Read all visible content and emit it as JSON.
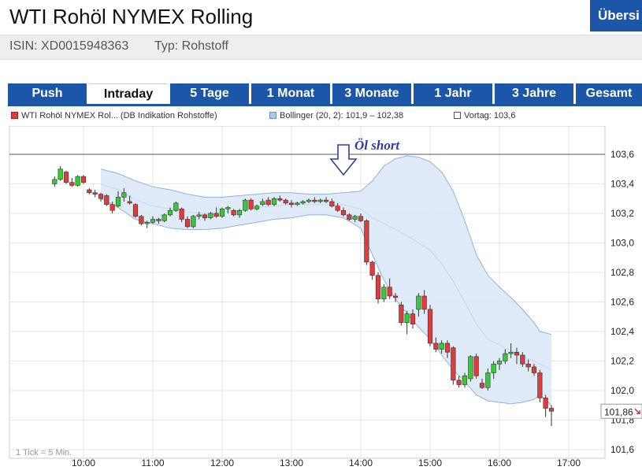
{
  "header": {
    "title": "WTI Rohöl NYMEX Rolling",
    "isin": "ISIN: XD0015948363",
    "typ": "Typ: Rohstoff",
    "overview_button": "Übersi"
  },
  "tabs": [
    {
      "label": "Push",
      "active": false
    },
    {
      "label": "Intraday",
      "active": true
    },
    {
      "label": "5 Tage",
      "active": false
    },
    {
      "label": "1 Monat",
      "active": false
    },
    {
      "label": "3 Monate",
      "active": false
    },
    {
      "label": "1 Jahr",
      "active": false
    },
    {
      "label": "3 Jahre",
      "active": false
    },
    {
      "label": "Gesamt",
      "active": false
    }
  ],
  "legend": {
    "series": "WTI Rohöl NYMEX Rol... (DB Indikation Rohstoffe)",
    "bollinger": "Bollinger (20, 2): 101,9 – 102,38",
    "vortag": "Vortag: 103,6"
  },
  "colors": {
    "accent": "#1b56a8",
    "up": "#33cc33",
    "down": "#e23b3b",
    "band_fill": "#dde9fa",
    "band_line": "#8fb0dd"
  },
  "chart_data": {
    "type": "candlestick",
    "annotation": "Öl short",
    "tick_note": "1 Tick = 5 Min.",
    "last_price_label": "101,86",
    "grid": true,
    "previous_close": 103.6,
    "xlabels": [
      "10:00",
      "11:00",
      "12:00",
      "13:00",
      "14:00",
      "15:00",
      "16:00",
      "17:00"
    ],
    "ylabels": [
      "103,6",
      "103,4",
      "103,2",
      "103,0",
      "102,8",
      "102,6",
      "102,4",
      "102,2",
      "102,0",
      "101,8",
      "101,6"
    ],
    "ylim": [
      101.58,
      103.66
    ],
    "x_start": "09:35",
    "candles": [
      {
        "t": "09:35",
        "o": 103.4,
        "h": 103.45,
        "l": 103.38,
        "c": 103.43
      },
      {
        "t": "09:40",
        "o": 103.43,
        "h": 103.52,
        "l": 103.42,
        "c": 103.5
      },
      {
        "t": "09:45",
        "o": 103.48,
        "h": 103.49,
        "l": 103.4,
        "c": 103.41
      },
      {
        "t": "09:50",
        "o": 103.41,
        "h": 103.44,
        "l": 103.38,
        "c": 103.39
      },
      {
        "t": "09:55",
        "o": 103.39,
        "h": 103.46,
        "l": 103.38,
        "c": 103.45
      },
      {
        "t": "10:00",
        "o": 103.45,
        "h": 103.46,
        "l": 103.4,
        "c": 103.41
      },
      {
        "t": "10:05",
        "o": 103.36,
        "h": 103.37,
        "l": 103.33,
        "c": 103.34
      },
      {
        "t": "10:10",
        "o": 103.34,
        "h": 103.36,
        "l": 103.31,
        "c": 103.33
      },
      {
        "t": "10:15",
        "o": 103.33,
        "h": 103.34,
        "l": 103.28,
        "c": 103.3
      },
      {
        "t": "10:20",
        "o": 103.32,
        "h": 103.33,
        "l": 103.25,
        "c": 103.26
      },
      {
        "t": "10:25",
        "o": 103.26,
        "h": 103.28,
        "l": 103.2,
        "c": 103.22
      },
      {
        "t": "10:30",
        "o": 103.25,
        "h": 103.35,
        "l": 103.24,
        "c": 103.31
      },
      {
        "t": "10:35",
        "o": 103.31,
        "h": 103.37,
        "l": 103.28,
        "c": 103.34
      },
      {
        "t": "10:40",
        "o": 103.28,
        "h": 103.32,
        "l": 103.26,
        "c": 103.27
      },
      {
        "t": "10:45",
        "o": 103.26,
        "h": 103.27,
        "l": 103.17,
        "c": 103.18
      },
      {
        "t": "10:50",
        "o": 103.18,
        "h": 103.19,
        "l": 103.12,
        "c": 103.13
      },
      {
        "t": "10:55",
        "o": 103.13,
        "h": 103.15,
        "l": 103.1,
        "c": 103.14
      },
      {
        "t": "11:00",
        "o": 103.14,
        "h": 103.18,
        "l": 103.13,
        "c": 103.16
      },
      {
        "t": "11:05",
        "o": 103.16,
        "h": 103.17,
        "l": 103.13,
        "c": 103.15
      },
      {
        "t": "11:10",
        "o": 103.15,
        "h": 103.2,
        "l": 103.14,
        "c": 103.19
      },
      {
        "t": "11:15",
        "o": 103.19,
        "h": 103.24,
        "l": 103.18,
        "c": 103.22
      },
      {
        "t": "11:20",
        "o": 103.22,
        "h": 103.28,
        "l": 103.21,
        "c": 103.27
      },
      {
        "t": "11:25",
        "o": 103.23,
        "h": 103.24,
        "l": 103.14,
        "c": 103.16
      },
      {
        "t": "11:30",
        "o": 103.16,
        "h": 103.18,
        "l": 103.1,
        "c": 103.11
      },
      {
        "t": "11:35",
        "o": 103.11,
        "h": 103.19,
        "l": 103.1,
        "c": 103.18
      },
      {
        "t": "11:40",
        "o": 103.18,
        "h": 103.21,
        "l": 103.16,
        "c": 103.19
      },
      {
        "t": "11:45",
        "o": 103.19,
        "h": 103.2,
        "l": 103.15,
        "c": 103.17
      },
      {
        "t": "11:50",
        "o": 103.17,
        "h": 103.21,
        "l": 103.16,
        "c": 103.2
      },
      {
        "t": "11:55",
        "o": 103.2,
        "h": 103.24,
        "l": 103.17,
        "c": 103.18
      },
      {
        "t": "12:00",
        "o": 103.18,
        "h": 103.24,
        "l": 103.17,
        "c": 103.23
      },
      {
        "t": "12:05",
        "o": 103.23,
        "h": 103.25,
        "l": 103.2,
        "c": 103.24
      },
      {
        "t": "12:10",
        "o": 103.22,
        "h": 103.23,
        "l": 103.18,
        "c": 103.19
      },
      {
        "t": "12:15",
        "o": 103.19,
        "h": 103.23,
        "l": 103.17,
        "c": 103.22
      },
      {
        "t": "12:20",
        "o": 103.22,
        "h": 103.3,
        "l": 103.21,
        "c": 103.29
      },
      {
        "t": "12:25",
        "o": 103.29,
        "h": 103.3,
        "l": 103.22,
        "c": 103.23
      },
      {
        "t": "12:30",
        "o": 103.23,
        "h": 103.26,
        "l": 103.22,
        "c": 103.25
      },
      {
        "t": "12:35",
        "o": 103.26,
        "h": 103.3,
        "l": 103.25,
        "c": 103.28
      },
      {
        "t": "12:40",
        "o": 103.29,
        "h": 103.31,
        "l": 103.25,
        "c": 103.26
      },
      {
        "t": "12:45",
        "o": 103.26,
        "h": 103.31,
        "l": 103.25,
        "c": 103.3
      },
      {
        "t": "12:50",
        "o": 103.3,
        "h": 103.32,
        "l": 103.28,
        "c": 103.29
      },
      {
        "t": "12:55",
        "o": 103.29,
        "h": 103.3,
        "l": 103.26,
        "c": 103.27
      },
      {
        "t": "13:00",
        "o": 103.27,
        "h": 103.29,
        "l": 103.24,
        "c": 103.26
      },
      {
        "t": "13:05",
        "o": 103.26,
        "h": 103.28,
        "l": 103.25,
        "c": 103.27
      },
      {
        "t": "13:10",
        "o": 103.27,
        "h": 103.29,
        "l": 103.26,
        "c": 103.28
      },
      {
        "t": "13:15",
        "o": 103.28,
        "h": 103.3,
        "l": 103.27,
        "c": 103.29
      },
      {
        "t": "13:20",
        "o": 103.29,
        "h": 103.31,
        "l": 103.27,
        "c": 103.28
      },
      {
        "t": "13:25",
        "o": 103.28,
        "h": 103.3,
        "l": 103.27,
        "c": 103.29
      },
      {
        "t": "13:30",
        "o": 103.29,
        "h": 103.31,
        "l": 103.27,
        "c": 103.28
      },
      {
        "t": "13:35",
        "o": 103.28,
        "h": 103.3,
        "l": 103.24,
        "c": 103.25
      },
      {
        "t": "13:40",
        "o": 103.25,
        "h": 103.27,
        "l": 103.21,
        "c": 103.22
      },
      {
        "t": "13:45",
        "o": 103.22,
        "h": 103.24,
        "l": 103.18,
        "c": 103.19
      },
      {
        "t": "13:50",
        "o": 103.19,
        "h": 103.2,
        "l": 103.15,
        "c": 103.16
      },
      {
        "t": "13:55",
        "o": 103.16,
        "h": 103.19,
        "l": 103.14,
        "c": 103.18
      },
      {
        "t": "14:00",
        "o": 103.18,
        "h": 103.2,
        "l": 103.14,
        "c": 103.15
      },
      {
        "t": "14:05",
        "o": 103.15,
        "h": 103.16,
        "l": 102.85,
        "c": 102.87
      },
      {
        "t": "14:10",
        "o": 102.87,
        "h": 102.88,
        "l": 102.75,
        "c": 102.78
      },
      {
        "t": "14:15",
        "o": 102.78,
        "h": 102.8,
        "l": 102.59,
        "c": 102.62
      },
      {
        "t": "14:20",
        "o": 102.62,
        "h": 102.72,
        "l": 102.6,
        "c": 102.7
      },
      {
        "t": "14:25",
        "o": 102.7,
        "h": 102.76,
        "l": 102.62,
        "c": 102.64
      },
      {
        "t": "14:30",
        "o": 102.64,
        "h": 102.66,
        "l": 102.6,
        "c": 102.63
      },
      {
        "t": "14:35",
        "o": 102.58,
        "h": 102.6,
        "l": 102.44,
        "c": 102.46
      },
      {
        "t": "14:40",
        "o": 102.46,
        "h": 102.54,
        "l": 102.38,
        "c": 102.52
      },
      {
        "t": "14:45",
        "o": 102.52,
        "h": 102.55,
        "l": 102.42,
        "c": 102.45
      },
      {
        "t": "14:50",
        "o": 102.55,
        "h": 102.66,
        "l": 102.5,
        "c": 102.64
      },
      {
        "t": "14:55",
        "o": 102.64,
        "h": 102.68,
        "l": 102.52,
        "c": 102.55
      },
      {
        "t": "15:00",
        "o": 102.55,
        "h": 102.58,
        "l": 102.3,
        "c": 102.32
      },
      {
        "t": "15:05",
        "o": 102.32,
        "h": 102.36,
        "l": 102.26,
        "c": 102.28
      },
      {
        "t": "15:10",
        "o": 102.28,
        "h": 102.34,
        "l": 102.25,
        "c": 102.32
      },
      {
        "t": "15:15",
        "o": 102.32,
        "h": 102.34,
        "l": 102.22,
        "c": 102.26
      },
      {
        "t": "15:20",
        "o": 102.29,
        "h": 102.3,
        "l": 102.04,
        "c": 102.07
      },
      {
        "t": "15:25",
        "o": 102.07,
        "h": 102.1,
        "l": 102.02,
        "c": 102.04
      },
      {
        "t": "15:30",
        "o": 102.04,
        "h": 102.12,
        "l": 102.02,
        "c": 102.1
      },
      {
        "t": "15:35",
        "o": 102.08,
        "h": 102.24,
        "l": 102.06,
        "c": 102.23
      },
      {
        "t": "15:40",
        "o": 102.23,
        "h": 102.25,
        "l": 102.08,
        "c": 102.1
      },
      {
        "t": "15:45",
        "o": 102.05,
        "h": 102.08,
        "l": 102.01,
        "c": 102.02
      },
      {
        "t": "15:50",
        "o": 102.02,
        "h": 102.15,
        "l": 102.0,
        "c": 102.12
      },
      {
        "t": "15:55",
        "o": 102.12,
        "h": 102.2,
        "l": 102.08,
        "c": 102.18
      },
      {
        "t": "16:00",
        "o": 102.18,
        "h": 102.22,
        "l": 102.14,
        "c": 102.2
      },
      {
        "t": "16:05",
        "o": 102.2,
        "h": 102.28,
        "l": 102.18,
        "c": 102.25
      },
      {
        "t": "16:10",
        "o": 102.25,
        "h": 102.32,
        "l": 102.22,
        "c": 102.26
      },
      {
        "t": "16:15",
        "o": 102.26,
        "h": 102.29,
        "l": 102.18,
        "c": 102.24
      },
      {
        "t": "16:20",
        "o": 102.24,
        "h": 102.26,
        "l": 102.16,
        "c": 102.18
      },
      {
        "t": "16:25",
        "o": 102.18,
        "h": 102.21,
        "l": 102.13,
        "c": 102.16
      },
      {
        "t": "16:30",
        "o": 102.16,
        "h": 102.18,
        "l": 102.1,
        "c": 102.12
      },
      {
        "t": "16:35",
        "o": 102.12,
        "h": 102.14,
        "l": 101.92,
        "c": 101.95
      },
      {
        "t": "16:40",
        "o": 101.95,
        "h": 101.97,
        "l": 101.82,
        "c": 101.88
      },
      {
        "t": "16:45",
        "o": 101.88,
        "h": 101.9,
        "l": 101.76,
        "c": 101.86
      }
    ],
    "bollinger_upper": [
      [
        "10:15",
        103.5
      ],
      [
        "10:30",
        103.47
      ],
      [
        "10:45",
        103.42
      ],
      [
        "11:00",
        103.38
      ],
      [
        "11:15",
        103.36
      ],
      [
        "11:30",
        103.33
      ],
      [
        "11:45",
        103.31
      ],
      [
        "12:00",
        103.31
      ],
      [
        "12:15",
        103.32
      ],
      [
        "12:30",
        103.33
      ],
      [
        "12:45",
        103.34
      ],
      [
        "13:00",
        103.34
      ],
      [
        "13:15",
        103.33
      ],
      [
        "13:30",
        103.33
      ],
      [
        "13:45",
        103.34
      ],
      [
        "14:00",
        103.35
      ],
      [
        "14:10",
        103.42
      ],
      [
        "14:20",
        103.52
      ],
      [
        "14:30",
        103.57
      ],
      [
        "14:40",
        103.59
      ],
      [
        "14:50",
        103.58
      ],
      [
        "15:00",
        103.55
      ],
      [
        "15:10",
        103.48
      ],
      [
        "15:20",
        103.35
      ],
      [
        "15:30",
        103.15
      ],
      [
        "15:40",
        102.92
      ],
      [
        "15:50",
        102.78
      ],
      [
        "16:00",
        102.7
      ],
      [
        "16:10",
        102.63
      ],
      [
        "16:20",
        102.55
      ],
      [
        "16:30",
        102.46
      ],
      [
        "16:35",
        102.4
      ],
      [
        "16:45",
        102.38
      ]
    ],
    "bollinger_lower": [
      [
        "10:15",
        103.3
      ],
      [
        "10:30",
        103.24
      ],
      [
        "10:45",
        103.16
      ],
      [
        "11:00",
        103.13
      ],
      [
        "11:15",
        103.1
      ],
      [
        "11:30",
        103.09
      ],
      [
        "11:45",
        103.09
      ],
      [
        "12:00",
        103.1
      ],
      [
        "12:15",
        103.12
      ],
      [
        "12:30",
        103.14
      ],
      [
        "12:45",
        103.16
      ],
      [
        "13:00",
        103.17
      ],
      [
        "13:15",
        103.19
      ],
      [
        "13:30",
        103.19
      ],
      [
        "13:45",
        103.17
      ],
      [
        "14:00",
        103.1
      ],
      [
        "14:10",
        102.92
      ],
      [
        "14:20",
        102.75
      ],
      [
        "14:30",
        102.62
      ],
      [
        "14:40",
        102.52
      ],
      [
        "14:50",
        102.43
      ],
      [
        "15:00",
        102.35
      ],
      [
        "15:10",
        102.24
      ],
      [
        "15:20",
        102.14
      ],
      [
        "15:30",
        102.06
      ],
      [
        "15:40",
        101.97
      ],
      [
        "15:50",
        101.93
      ],
      [
        "16:00",
        101.92
      ],
      [
        "16:10",
        101.91
      ],
      [
        "16:20",
        101.92
      ],
      [
        "16:30",
        101.94
      ],
      [
        "16:35",
        101.97
      ],
      [
        "16:45",
        101.9
      ]
    ],
    "bollinger_middle": [
      [
        "10:15",
        103.4
      ],
      [
        "10:30",
        103.36
      ],
      [
        "10:45",
        103.29
      ],
      [
        "11:00",
        103.25
      ],
      [
        "11:15",
        103.23
      ],
      [
        "11:30",
        103.21
      ],
      [
        "11:45",
        103.2
      ],
      [
        "12:00",
        103.21
      ],
      [
        "12:15",
        103.22
      ],
      [
        "12:30",
        103.24
      ],
      [
        "12:45",
        103.25
      ],
      [
        "13:00",
        103.26
      ],
      [
        "13:15",
        103.26
      ],
      [
        "13:30",
        103.26
      ],
      [
        "13:45",
        103.26
      ],
      [
        "14:00",
        103.23
      ],
      [
        "14:10",
        103.17
      ],
      [
        "14:20",
        103.13
      ],
      [
        "14:30",
        103.09
      ],
      [
        "14:40",
        103.05
      ],
      [
        "14:50",
        103.0
      ],
      [
        "15:00",
        102.95
      ],
      [
        "15:10",
        102.86
      ],
      [
        "15:20",
        102.74
      ],
      [
        "15:30",
        102.6
      ],
      [
        "15:40",
        102.45
      ],
      [
        "15:50",
        102.35
      ],
      [
        "16:00",
        102.31
      ],
      [
        "16:10",
        102.27
      ],
      [
        "16:20",
        102.23
      ],
      [
        "16:30",
        102.2
      ],
      [
        "16:35",
        102.18
      ],
      [
        "16:45",
        102.14
      ]
    ]
  }
}
